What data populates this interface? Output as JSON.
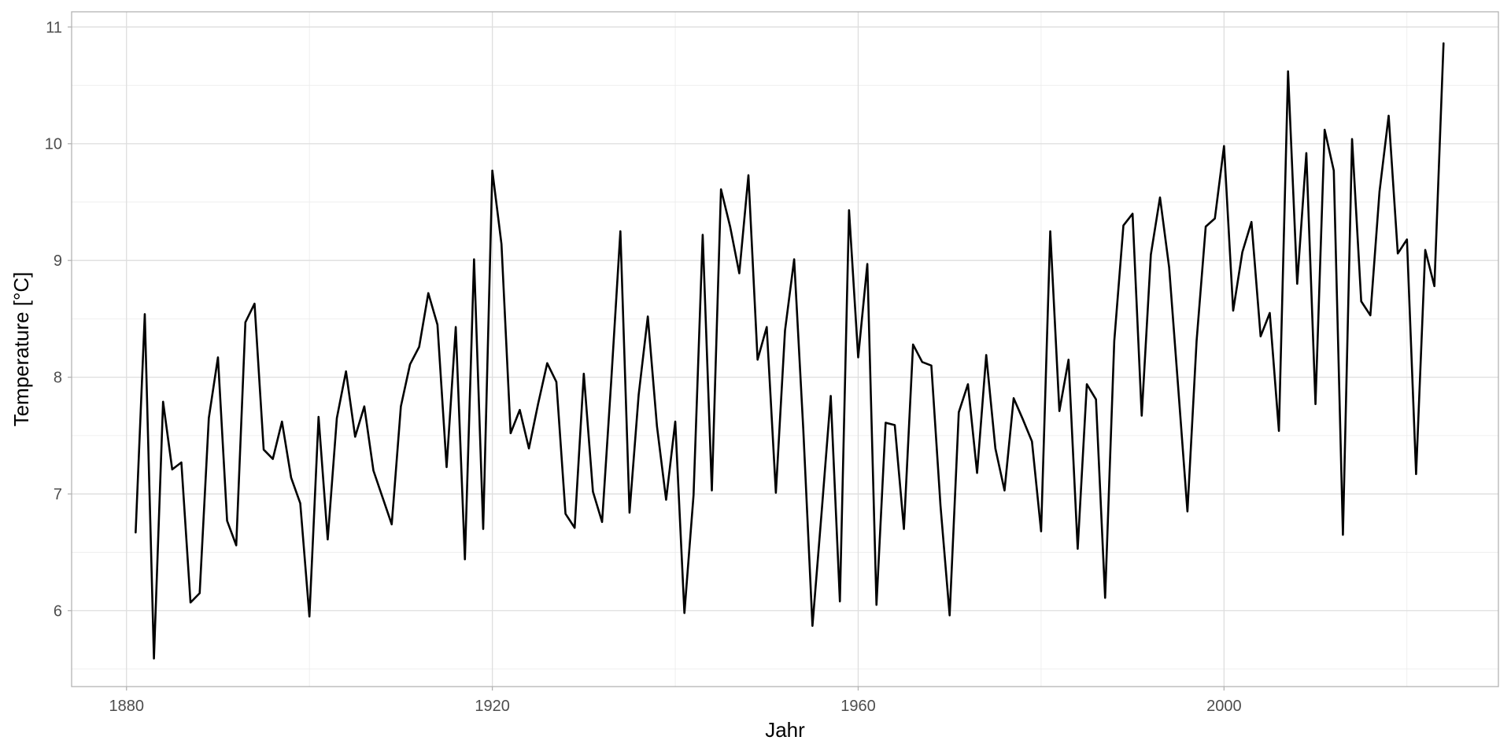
{
  "chart_data": {
    "type": "line",
    "title": "",
    "xlabel": "Jahr",
    "ylabel": "Temperature [°C]",
    "xlim": [
      1874,
      2030
    ],
    "ylim": [
      5.35,
      11.13
    ],
    "x_ticks": [
      1880,
      1920,
      1960,
      2000
    ],
    "y_ticks": [
      6,
      7,
      8,
      9,
      10,
      11
    ],
    "grid": true,
    "legend": "none",
    "colors": {
      "line": "#000000",
      "grid_major": "#dedede",
      "grid_minor": "#ebebeb",
      "border": "#b3b3b3",
      "background": "#ffffff"
    },
    "series": [
      {
        "x": [
          1881,
          1882,
          1883,
          1884,
          1885,
          1886,
          1887,
          1888,
          1889,
          1890,
          1891,
          1892,
          1893,
          1894,
          1895,
          1896,
          1897,
          1898,
          1899,
          1900,
          1901,
          1902,
          1903,
          1904,
          1905,
          1906,
          1907,
          1908,
          1909,
          1910,
          1911,
          1912,
          1913,
          1914,
          1915,
          1916,
          1917,
          1918,
          1919,
          1920,
          1921,
          1922,
          1923,
          1924,
          1925,
          1926,
          1927,
          1928,
          1929,
          1930,
          1931,
          1932,
          1933,
          1934,
          1935,
          1936,
          1937,
          1938,
          1939,
          1940,
          1941,
          1942,
          1943,
          1944,
          1945,
          1946,
          1947,
          1948,
          1949,
          1950,
          1951,
          1952,
          1953,
          1954,
          1955,
          1956,
          1957,
          1958,
          1959,
          1960,
          1961,
          1962,
          1963,
          1964,
          1965,
          1966,
          1967,
          1968,
          1969,
          1970,
          1971,
          1972,
          1973,
          1974,
          1975,
          1976,
          1977,
          1978,
          1979,
          1980,
          1981,
          1982,
          1983,
          1984,
          1985,
          1986,
          1987,
          1988,
          1989,
          1990,
          1991,
          1992,
          1993,
          1994,
          1995,
          1996,
          1997,
          1998,
          1999,
          2000,
          2001,
          2002,
          2003,
          2004,
          2005,
          2006,
          2007,
          2008,
          2009,
          2010,
          2011,
          2012,
          2013,
          2014,
          2015,
          2016,
          2017,
          2018,
          2019,
          2020,
          2021,
          2022,
          2023,
          2024
        ],
        "values": [
          6.67,
          8.54,
          5.59,
          7.79,
          7.21,
          7.27,
          6.07,
          6.15,
          7.65,
          8.17,
          6.77,
          6.56,
          8.47,
          8.63,
          7.38,
          7.3,
          7.62,
          7.14,
          6.92,
          5.95,
          7.66,
          6.61,
          7.65,
          8.05,
          7.49,
          7.75,
          7.2,
          6.97,
          6.74,
          7.75,
          8.11,
          8.26,
          8.72,
          8.45,
          7.23,
          8.43,
          6.44,
          9.01,
          6.7,
          9.77,
          9.14,
          7.52,
          7.72,
          7.39,
          7.77,
          8.12,
          7.96,
          6.83,
          6.71,
          8.03,
          7.02,
          6.76,
          7.97,
          9.25,
          6.84,
          7.85,
          8.52,
          7.58,
          6.95,
          7.62,
          5.98,
          6.99,
          9.22,
          7.03,
          9.61,
          9.29,
          8.89,
          9.73,
          8.15,
          8.43,
          7.01,
          8.4,
          9.01,
          7.55,
          5.87,
          6.84,
          7.84,
          6.08,
          9.43,
          8.17,
          8.97,
          6.05,
          7.61,
          7.59,
          6.7,
          8.28,
          8.13,
          8.1,
          6.9,
          5.96,
          7.7,
          7.94,
          7.18,
          8.19,
          7.39,
          7.03,
          7.82,
          7.64,
          7.45,
          6.68,
          9.25,
          7.71,
          8.15,
          6.53,
          7.94,
          7.81,
          6.11,
          8.31,
          9.3,
          9.4,
          7.67,
          9.05,
          9.54,
          8.94,
          7.9,
          6.85,
          8.31,
          9.29,
          9.36,
          9.98,
          8.57,
          9.07,
          9.33,
          8.35,
          8.55,
          7.54,
          10.62,
          8.8,
          9.92,
          7.77,
          10.12,
          9.77,
          6.65,
          10.04,
          8.65,
          8.53,
          9.59,
          10.24,
          9.06,
          9.18,
          7.17,
          9.09,
          8.78,
          10.86
        ]
      }
    ]
  }
}
